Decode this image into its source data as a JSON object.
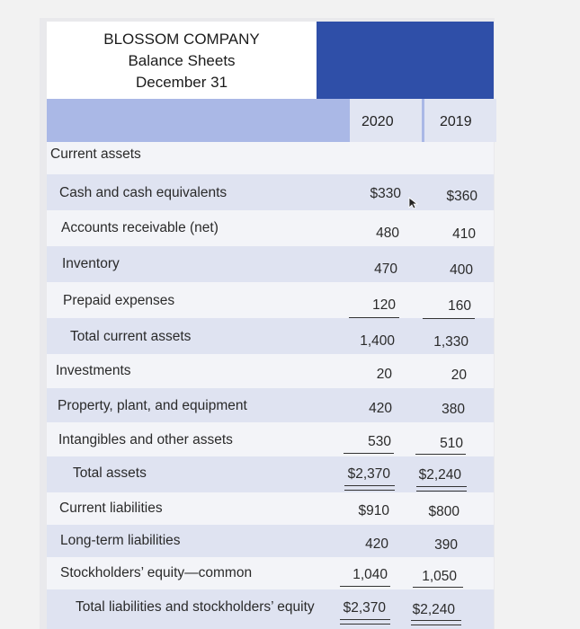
{
  "header": {
    "company": "BLOSSOM COMPANY",
    "statement": "Balance Sheets",
    "date": "December 31"
  },
  "years": {
    "y1": "2020",
    "y2": "2019"
  },
  "rows": [
    {
      "label": "Current assets",
      "v2020": "",
      "v2019": ""
    },
    {
      "label": "Cash and cash equivalents",
      "v2020": "$330",
      "v2019": "$360"
    },
    {
      "label": "Accounts receivable (net)",
      "v2020": "480",
      "v2019": "410"
    },
    {
      "label": "Inventory",
      "v2020": "470",
      "v2019": "400"
    },
    {
      "label": "Prepaid expenses",
      "v2020": "120",
      "v2019": "160"
    },
    {
      "label": "Total current assets",
      "v2020": "1,400",
      "v2019": "1,330"
    },
    {
      "label": "Investments",
      "v2020": "20",
      "v2019": "20"
    },
    {
      "label": "Property, plant, and equipment",
      "v2020": "420",
      "v2019": "380"
    },
    {
      "label": "Intangibles and other assets",
      "v2020": "530",
      "v2019": "510"
    },
    {
      "label": "Total assets",
      "v2020": "$2,370",
      "v2019": "$2,240"
    },
    {
      "label": "Current liabilities",
      "v2020": "$910",
      "v2019": "$800"
    },
    {
      "label": "Long-term liabilities",
      "v2020": "420",
      "v2019": "390"
    },
    {
      "label": "Stockholders’ equity—common",
      "v2020": "1,040",
      "v2019": "1,050"
    },
    {
      "label": "Total liabilities and stockholders’ equity",
      "v2020": "$2,370",
      "v2019": "$2,240"
    }
  ]
}
